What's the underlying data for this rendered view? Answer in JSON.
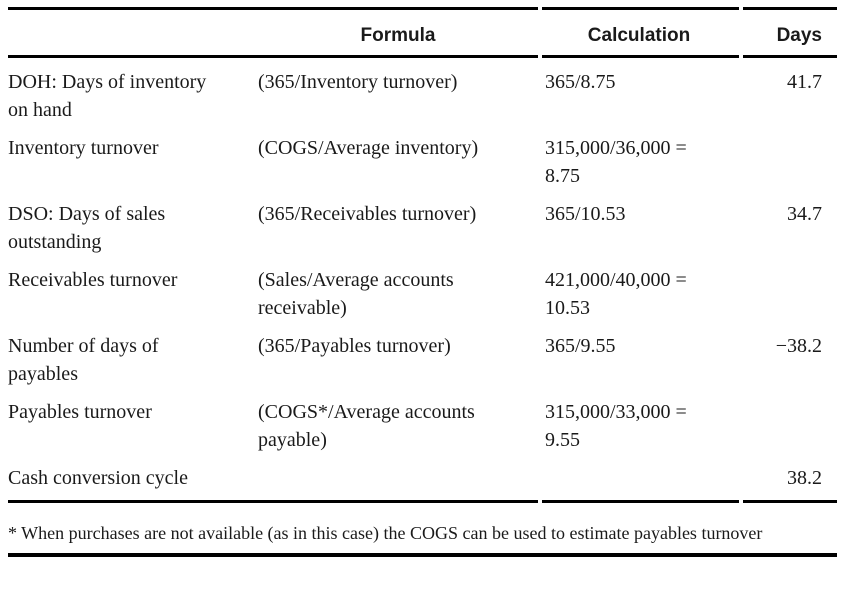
{
  "table": {
    "columns": [
      "",
      "Formula",
      "Calculation",
      "Days"
    ],
    "rows": [
      {
        "label": "DOH: Days of inventory\non hand",
        "formula": "(365/Inventory turnover)",
        "calculation": "365/8.75",
        "days": "41.7"
      },
      {
        "label": "Inventory turnover",
        "formula": "(COGS/Average inventory)",
        "calculation": "315,000/36,000 =\n8.75",
        "days": ""
      },
      {
        "label": "DSO: Days of sales\noutstanding",
        "formula": "(365/Receivables turnover)",
        "calculation": "365/10.53",
        "days": "34.7"
      },
      {
        "label": "Receivables turnover",
        "formula": "(Sales/Average accounts\nreceivable)",
        "calculation": "421,000/40,000 =\n10.53",
        "days": ""
      },
      {
        "label": "Number of days of\npayables",
        "formula": "(365/Payables turnover)",
        "calculation": "365/9.55",
        "days": "−38.2"
      },
      {
        "label": "Payables turnover",
        "formula": "(COGS*/Average accounts\npayable)",
        "calculation": "315,000/33,000 =\n9.55",
        "days": ""
      },
      {
        "label": "Cash conversion cycle",
        "formula": "",
        "calculation": "",
        "days": "38.2"
      }
    ],
    "footnote": "* When purchases are not available (as in this case) the COGS can be used to estimate payables turnover"
  },
  "colors": {
    "background": "#ffffff",
    "text": "#1a1a1a",
    "rule": "#000000"
  }
}
